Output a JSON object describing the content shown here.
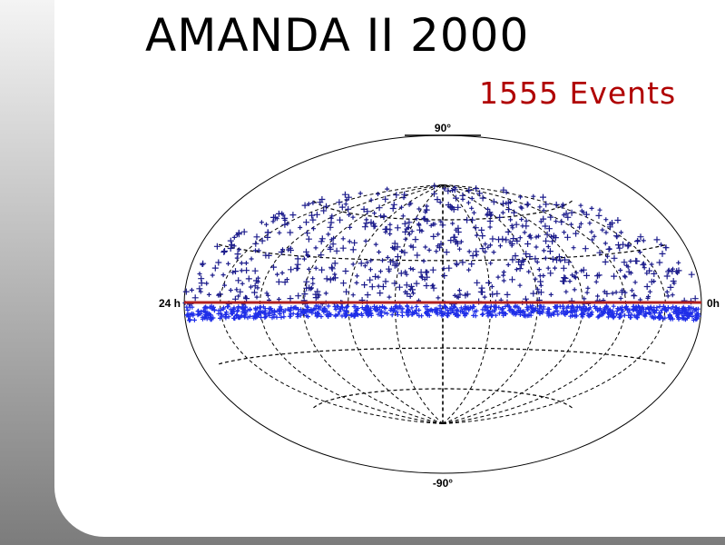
{
  "slide": {
    "title": "AMANDA II 2000",
    "subtitle": "1555 Events"
  },
  "colors": {
    "title": "#000000",
    "subtitle": "#b00000",
    "north_events": "#1c1c8c",
    "horizon_events": "#1f2ee8",
    "horizon_line": "#b02020",
    "background_gradient": [
      "#f4f4f4",
      "#7c7c7c"
    ]
  },
  "chart_data": {
    "type": "scatter",
    "projection": "hammer-aitoff equatorial sky map",
    "marker": "plus",
    "event_count": 1555,
    "top_label": "90°",
    "bottom_label": "-90°",
    "left_label": "24 h",
    "right_label": "0h",
    "ra_range_hours": [
      24,
      0
    ],
    "dec_range_deg": [
      -90,
      90
    ],
    "grid": true,
    "grid_meridian_step_hours": 2,
    "grid_parallel_step_deg": 30,
    "horizon_line_dec_deg": 0,
    "distribution": "events spread over the northern sky (dec 0° to 90°), dense band just below the horizon (dec ≈ -1° to -8°)"
  }
}
